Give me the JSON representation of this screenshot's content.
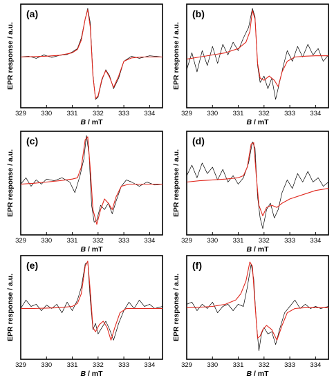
{
  "colors": {
    "experimental": "#000000",
    "fit": "#e0281e"
  },
  "chart_data": [
    {
      "type": "line",
      "panel_label": "(a)",
      "xlabel_italic": "B",
      "xlabel_unit": " / mT",
      "ylabel": "EPR response / a.u.",
      "xlim": [
        329,
        334.5
      ],
      "xticks": [
        329,
        330,
        331,
        332,
        333,
        334
      ],
      "ylim": [
        -1.2,
        1.25
      ],
      "series": [
        {
          "role": "experimental",
          "x": [
            329,
            329.3,
            329.6,
            329.9,
            330.2,
            330.5,
            330.8,
            331.0,
            331.2,
            331.35,
            331.5,
            331.6,
            331.7,
            331.8,
            331.9,
            332.0,
            332.15,
            332.3,
            332.45,
            332.6,
            332.8,
            333.0,
            333.3,
            333.6,
            334.0,
            334.5
          ],
          "y": [
            0,
            0.02,
            -0.03,
            0.05,
            -0.01,
            0.04,
            0.06,
            0.12,
            0.2,
            0.45,
            0.9,
            1.15,
            0.8,
            -0.4,
            -1.0,
            -0.95,
            -0.55,
            -0.3,
            -0.45,
            -0.75,
            -0.5,
            -0.1,
            0.02,
            -0.03,
            0.03,
            0
          ]
        },
        {
          "role": "fit",
          "x": [
            329,
            329.5,
            330,
            330.5,
            331,
            331.2,
            331.35,
            331.5,
            331.6,
            331.7,
            331.8,
            331.9,
            332.0,
            332.15,
            332.3,
            332.45,
            332.6,
            332.8,
            333.0,
            333.3,
            333.7,
            334.5
          ],
          "y": [
            0,
            0.01,
            0.02,
            0.04,
            0.1,
            0.18,
            0.4,
            0.9,
            1.12,
            0.7,
            -0.45,
            -0.98,
            -0.92,
            -0.52,
            -0.32,
            -0.48,
            -0.72,
            -0.45,
            -0.1,
            -0.02,
            0,
            0
          ]
        }
      ]
    },
    {
      "type": "line",
      "panel_label": "(b)",
      "xlabel_italic": "B",
      "xlabel_unit": " / mT",
      "ylabel": "EPR response / a.u.",
      "xlim": [
        329,
        334.5
      ],
      "xticks": [
        329,
        330,
        331,
        332,
        333,
        334
      ],
      "ylim": [
        -1.2,
        1.25
      ],
      "series": [
        {
          "role": "experimental",
          "x": [
            329,
            329.2,
            329.4,
            329.6,
            329.8,
            330.0,
            330.2,
            330.4,
            330.6,
            330.8,
            331.0,
            331.2,
            331.4,
            331.55,
            331.65,
            331.75,
            331.85,
            332.0,
            332.15,
            332.3,
            332.45,
            332.6,
            332.75,
            332.9,
            333.1,
            333.3,
            333.5,
            333.7,
            333.9,
            334.1,
            334.3,
            334.5
          ],
          "y": [
            -0.3,
            0.1,
            -0.35,
            0.15,
            -0.2,
            0.25,
            -0.15,
            0.3,
            0.05,
            0.35,
            0.15,
            0.45,
            0.7,
            1.15,
            0.95,
            -0.2,
            -0.6,
            -0.45,
            -0.75,
            -0.5,
            -1.0,
            -0.6,
            -0.2,
            0.15,
            -0.1,
            0.25,
            0.0,
            0.3,
            0.05,
            0.2,
            -0.1,
            0.05
          ]
        },
        {
          "role": "fit",
          "x": [
            329,
            329.5,
            330,
            330.5,
            331,
            331.3,
            331.45,
            331.55,
            331.65,
            331.75,
            331.85,
            332.0,
            332.2,
            332.4,
            332.55,
            332.7,
            332.9,
            333.2,
            333.6,
            334.0,
            334.5
          ],
          "y": [
            -0.05,
            0.0,
            0.05,
            0.1,
            0.2,
            0.35,
            0.6,
            1.1,
            0.9,
            -0.15,
            -0.5,
            -0.55,
            -0.45,
            -0.55,
            -0.7,
            -0.35,
            -0.1,
            0.0,
            0.02,
            0.03,
            0.03
          ]
        }
      ]
    },
    {
      "type": "line",
      "panel_label": "(c)",
      "xlabel_italic": "B",
      "xlabel_unit": " / mT",
      "ylabel": "EPR response / a.u.",
      "xlim": [
        329,
        334.5
      ],
      "xticks": [
        329,
        330,
        331,
        332,
        333,
        334
      ],
      "ylim": [
        -1.2,
        1.25
      ],
      "series": [
        {
          "role": "experimental",
          "x": [
            329,
            329.2,
            329.4,
            329.6,
            329.8,
            330.0,
            330.3,
            330.6,
            330.9,
            331.1,
            331.3,
            331.45,
            331.55,
            331.65,
            331.75,
            331.85,
            331.95,
            332.1,
            332.25,
            332.4,
            332.55,
            332.7,
            332.9,
            333.1,
            333.3,
            333.6,
            333.9,
            334.2,
            334.5
          ],
          "y": [
            0.0,
            0.15,
            -0.05,
            0.1,
            0.0,
            0.12,
            0.08,
            0.15,
            0.05,
            -0.2,
            0.2,
            0.6,
            1.15,
            0.7,
            -0.5,
            -0.9,
            -0.85,
            -0.5,
            -0.6,
            -0.45,
            -0.7,
            -0.4,
            -0.05,
            0.1,
            0.05,
            -0.05,
            0.05,
            -0.02,
            0.0
          ]
        },
        {
          "role": "fit",
          "x": [
            329,
            329.5,
            330,
            330.5,
            331,
            331.2,
            331.35,
            331.5,
            331.6,
            331.7,
            331.8,
            331.95,
            332.1,
            332.25,
            332.4,
            332.55,
            332.7,
            332.9,
            333.2,
            333.6,
            334.5
          ],
          "y": [
            0.0,
            0.02,
            0.05,
            0.08,
            0.12,
            0.15,
            0.4,
            1.05,
            1.12,
            0.35,
            -0.6,
            -0.95,
            -0.6,
            -0.35,
            -0.45,
            -0.6,
            -0.3,
            -0.05,
            0.0,
            0.0,
            0.0
          ]
        }
      ]
    },
    {
      "type": "line",
      "panel_label": "(d)",
      "xlabel_italic": "B",
      "xlabel_unit": " / mT",
      "ylabel": "EPR response / a.u.",
      "xlim": [
        329,
        334.5
      ],
      "xticks": [
        329,
        330,
        331,
        332,
        333,
        334
      ],
      "ylim": [
        -1.2,
        1.25
      ],
      "series": [
        {
          "role": "experimental",
          "x": [
            329,
            329.2,
            329.4,
            329.6,
            329.8,
            330.0,
            330.2,
            330.4,
            330.6,
            330.8,
            331.0,
            331.2,
            331.4,
            331.55,
            331.65,
            331.75,
            331.85,
            331.95,
            332.1,
            332.25,
            332.4,
            332.55,
            332.7,
            332.9,
            333.1,
            333.3,
            333.5,
            333.7,
            333.9,
            334.1,
            334.3,
            334.5
          ],
          "y": [
            0.2,
            0.45,
            0.15,
            0.5,
            0.25,
            0.4,
            0.1,
            0.35,
            0.05,
            0.2,
            0.0,
            0.15,
            0.5,
            1.0,
            0.85,
            -0.3,
            -0.8,
            -1.05,
            -0.6,
            -0.45,
            -0.8,
            -0.6,
            -0.2,
            0.1,
            -0.1,
            0.25,
            0.05,
            0.3,
            0.05,
            0.15,
            -0.05,
            0.05
          ]
        },
        {
          "role": "fit",
          "x": [
            329,
            329.5,
            330,
            330.5,
            331,
            331.2,
            331.35,
            331.5,
            331.6,
            331.7,
            331.8,
            331.95,
            332.1,
            332.3,
            332.5,
            332.7,
            333.0,
            333.5,
            334.0,
            334.5
          ],
          "y": [
            0.05,
            0.08,
            0.1,
            0.12,
            0.15,
            0.2,
            0.4,
            0.95,
            0.98,
            0.2,
            -0.5,
            -0.75,
            -0.55,
            -0.5,
            -0.55,
            -0.45,
            -0.35,
            -0.25,
            -0.15,
            -0.1
          ]
        }
      ]
    },
    {
      "type": "line",
      "panel_label": "(e)",
      "xlabel_italic": "B",
      "xlabel_unit": " / mT",
      "ylabel": "EPR response / a.u.",
      "xlim": [
        329,
        334.5
      ],
      "xticks": [
        329,
        330,
        331,
        332,
        333,
        334
      ],
      "ylim": [
        -1.2,
        1.25
      ],
      "series": [
        {
          "role": "experimental",
          "x": [
            329,
            329.2,
            329.4,
            329.6,
            329.8,
            330.0,
            330.2,
            330.4,
            330.6,
            330.8,
            331.0,
            331.2,
            331.35,
            331.5,
            331.6,
            331.7,
            331.8,
            331.9,
            332.0,
            332.15,
            332.3,
            332.45,
            332.6,
            332.8,
            333.0,
            333.2,
            333.4,
            333.6,
            333.8,
            334.0,
            334.2,
            334.5
          ],
          "y": [
            0.0,
            0.2,
            0.05,
            0.1,
            -0.05,
            0.08,
            0.0,
            0.1,
            -0.1,
            0.15,
            -0.05,
            0.2,
            0.5,
            1.05,
            1.1,
            0.2,
            -0.5,
            -0.35,
            -0.6,
            -0.45,
            -0.3,
            -0.5,
            -0.75,
            -0.35,
            -0.05,
            0.15,
            0.0,
            0.2,
            0.05,
            0.1,
            0.0,
            0.05
          ]
        },
        {
          "role": "fit",
          "x": [
            329,
            329.5,
            330,
            330.5,
            331,
            331.2,
            331.35,
            331.5,
            331.6,
            331.7,
            331.8,
            331.9,
            332.05,
            332.2,
            332.35,
            332.5,
            332.65,
            332.85,
            333.1,
            333.5,
            334.5
          ],
          "y": [
            0.0,
            0.0,
            0.01,
            0.02,
            0.05,
            0.12,
            0.35,
            1.0,
            1.12,
            0.4,
            -0.45,
            -0.55,
            -0.38,
            -0.3,
            -0.45,
            -0.75,
            -0.45,
            -0.1,
            0.0,
            0.0,
            0.0
          ]
        }
      ]
    },
    {
      "type": "line",
      "panel_label": "(f)",
      "xlabel_italic": "B",
      "xlabel_unit": " / mT",
      "ylabel": "EPR response / a.u.",
      "xlim": [
        329,
        334.5
      ],
      "xticks": [
        329,
        330,
        331,
        332,
        333,
        334
      ],
      "ylim": [
        -1.2,
        1.25
      ],
      "series": [
        {
          "role": "experimental",
          "x": [
            329,
            329.2,
            329.4,
            329.6,
            329.8,
            330.0,
            330.2,
            330.4,
            330.6,
            330.8,
            331.0,
            331.2,
            331.35,
            331.5,
            331.6,
            331.7,
            331.8,
            331.9,
            332.0,
            332.15,
            332.3,
            332.45,
            332.6,
            332.8,
            333.0,
            333.2,
            333.4,
            333.6,
            333.8,
            334.0,
            334.2,
            334.5
          ],
          "y": [
            0.1,
            0.15,
            -0.05,
            0.1,
            0.0,
            0.15,
            -0.1,
            0.05,
            0.1,
            -0.05,
            0.1,
            0.05,
            0.5,
            1.05,
            0.7,
            -0.3,
            -1.0,
            -0.6,
            -0.45,
            -0.6,
            -0.55,
            -0.85,
            -0.5,
            -0.1,
            0.05,
            0.2,
            0.0,
            0.1,
            0.0,
            0.05,
            0.0,
            0.05
          ]
        },
        {
          "role": "fit",
          "x": [
            329,
            329.5,
            330,
            330.5,
            330.9,
            331.1,
            331.3,
            331.45,
            331.55,
            331.65,
            331.75,
            331.85,
            331.95,
            332.1,
            332.3,
            332.5,
            332.7,
            332.9,
            333.2,
            333.6,
            334.0,
            334.5
          ],
          "y": [
            0.02,
            0.03,
            0.05,
            0.1,
            0.2,
            0.35,
            0.65,
            1.1,
            1.0,
            0.1,
            -0.7,
            -0.65,
            -0.5,
            -0.4,
            -0.5,
            -0.75,
            -0.4,
            -0.1,
            0.0,
            0.02,
            0.02,
            0.02
          ]
        }
      ]
    }
  ]
}
